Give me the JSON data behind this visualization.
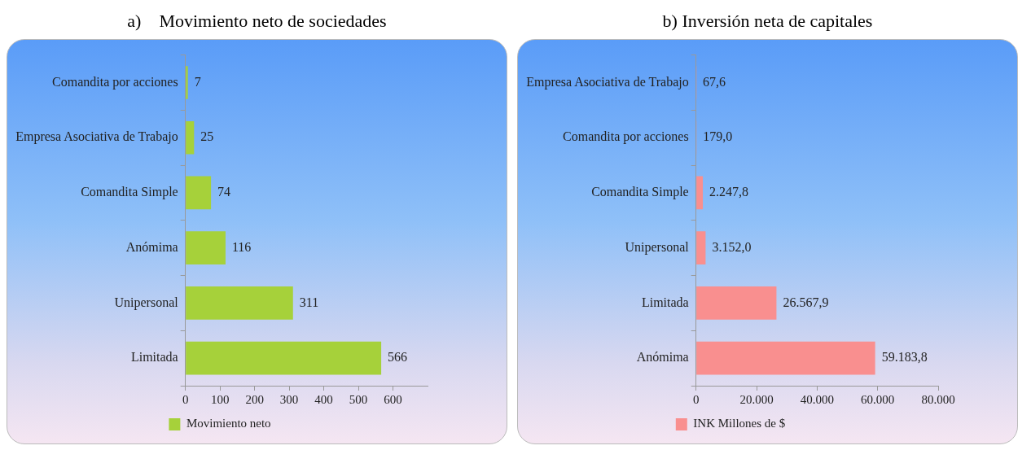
{
  "chart_data": [
    {
      "type": "bar",
      "orientation": "horizontal",
      "title": "a)    Movimiento neto de sociedades",
      "categories": [
        "Comandita por acciones",
        "Empresa Asociativa de Trabajo",
        "Comandita Simple",
        "Anómima",
        "Unipersonal",
        "Limitada"
      ],
      "series": [
        {
          "name": "Movimiento neto",
          "color": "#a6d13a",
          "values": [
            7,
            25,
            74,
            116,
            311,
            566
          ]
        }
      ],
      "xlim": [
        0,
        700
      ],
      "xticks": [
        0,
        100,
        200,
        300,
        400,
        500,
        600
      ],
      "data_labels": true,
      "legend": "bottom"
    },
    {
      "type": "bar",
      "orientation": "horizontal",
      "title": "b) Inversión neta de capitales",
      "categories": [
        "Empresa Asociativa de Trabajo",
        "Comandita por acciones",
        "Comandita Simple",
        "Unipersonal",
        "Limitada",
        "Anómima"
      ],
      "series": [
        {
          "name": "INK Millones de $",
          "color": "#f98f8f",
          "values": [
            67.6,
            179.0,
            2247.8,
            3152.0,
            26567.9,
            59183.8
          ],
          "value_labels": [
            "67,6",
            "179,0",
            "2.247,8",
            "3.152,0",
            "26.567,9",
            "59.183,8"
          ]
        }
      ],
      "xlim": [
        0,
        80000
      ],
      "xticks": [
        0,
        {
          "value": 20000,
          "label": "20.000"
        },
        {
          "value": 40000,
          "label": "40.000"
        },
        {
          "value": 60000,
          "label": "60.000"
        },
        {
          "value": 80000,
          "label": "80.000"
        }
      ],
      "legend": "bottom"
    }
  ]
}
